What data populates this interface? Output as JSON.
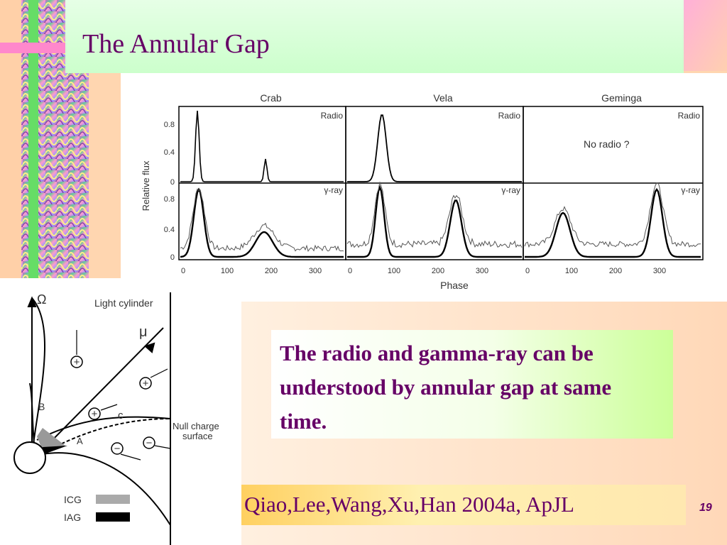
{
  "title": "The Annular Gap",
  "figure": {
    "columns": [
      "Crab",
      "Vela",
      "Geminga"
    ],
    "radio_label": "Radio",
    "gamma_label": "γ-ray",
    "note": "No radio ?",
    "y_label": "Relative flux",
    "x_label": "Phase",
    "y_ticks_top": [
      "0.8",
      "0.4",
      "0"
    ],
    "y_ticks_bottom": [
      "0.8",
      "0.4",
      "0"
    ],
    "x_ticks": [
      [
        "0",
        "100",
        "200",
        "300"
      ],
      [
        "0",
        "100",
        "200",
        "300"
      ],
      [
        "0",
        "100",
        "200",
        "300"
      ]
    ]
  },
  "diagram": {
    "omega": "Ω",
    "light_cylinder": "Light cylinder",
    "mu": "μ",
    "b": "B",
    "c": "c",
    "a": "A",
    "null_charge": [
      "Null charge",
      "surface"
    ],
    "plus": [
      "+",
      "+",
      "+"
    ],
    "minus": [
      "−",
      "−"
    ],
    "legend": [
      "ICG",
      "IAG"
    ]
  },
  "body": "The radio and gamma-ray can be understood by annular gap at same time.",
  "citation": "Qiao,Lee,Wang,Xu,Han 2004a, ApJL",
  "page_number": "19"
}
